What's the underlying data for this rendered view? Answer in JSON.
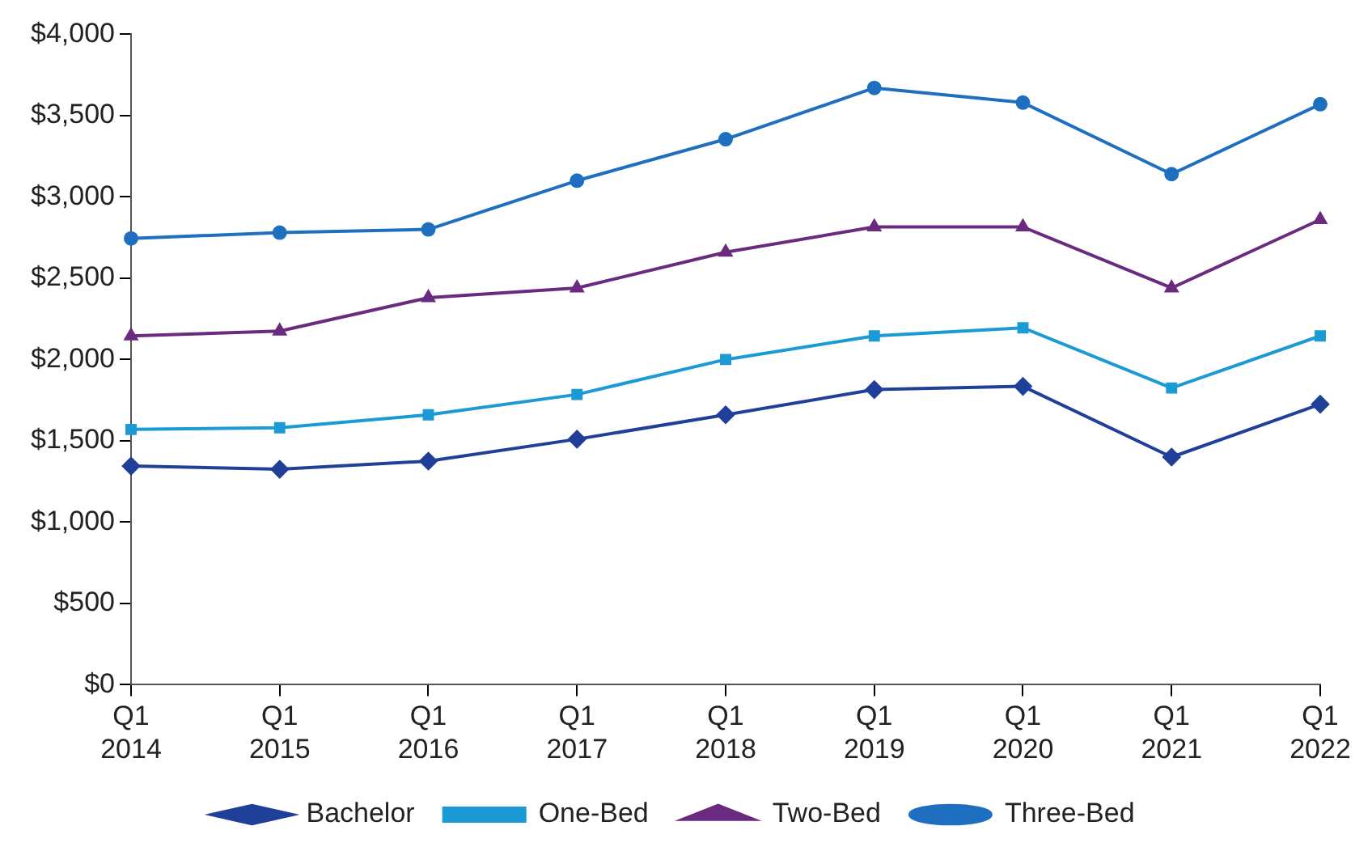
{
  "chart_data": {
    "type": "line",
    "categories": [
      "Q1 2014",
      "Q1 2015",
      "Q1 2016",
      "Q1 2017",
      "Q1 2018",
      "Q1 2019",
      "Q1 2020",
      "Q1 2021",
      "Q1 2022"
    ],
    "series": [
      {
        "name": "Bachelor",
        "color": "#1f3f99",
        "marker": "diamond",
        "values": [
          1345,
          1325,
          1375,
          1510,
          1660,
          1815,
          1835,
          1400,
          1725
        ]
      },
      {
        "name": "One-Bed",
        "color": "#1b9ad6",
        "marker": "square",
        "values": [
          1570,
          1580,
          1660,
          1785,
          2000,
          2145,
          2195,
          1825,
          2145
        ]
      },
      {
        "name": "Two-Bed",
        "color": "#6a2a7f",
        "marker": "triangle",
        "values": [
          2145,
          2175,
          2380,
          2440,
          2660,
          2815,
          2815,
          2440,
          2860
        ]
      },
      {
        "name": "Three-Bed",
        "color": "#1f6fc1",
        "marker": "circle",
        "values": [
          2745,
          2780,
          2800,
          3100,
          3355,
          3670,
          3580,
          3140,
          3570
        ]
      }
    ],
    "ylim": [
      0,
      4000
    ],
    "yticks": [
      {
        "value": 0,
        "label": "$0"
      },
      {
        "value": 500,
        "label": "$500"
      },
      {
        "value": 1000,
        "label": "$1,000"
      },
      {
        "value": 1500,
        "label": "$1,500"
      },
      {
        "value": 2000,
        "label": "$2,000"
      },
      {
        "value": 2500,
        "label": "$2,500"
      },
      {
        "value": 3000,
        "label": "$3,000"
      },
      {
        "value": 3500,
        "label": "$3,500"
      },
      {
        "value": 4000,
        "label": "$4,000"
      }
    ],
    "grid": false,
    "legend": "bottom",
    "line_style": "solid"
  }
}
